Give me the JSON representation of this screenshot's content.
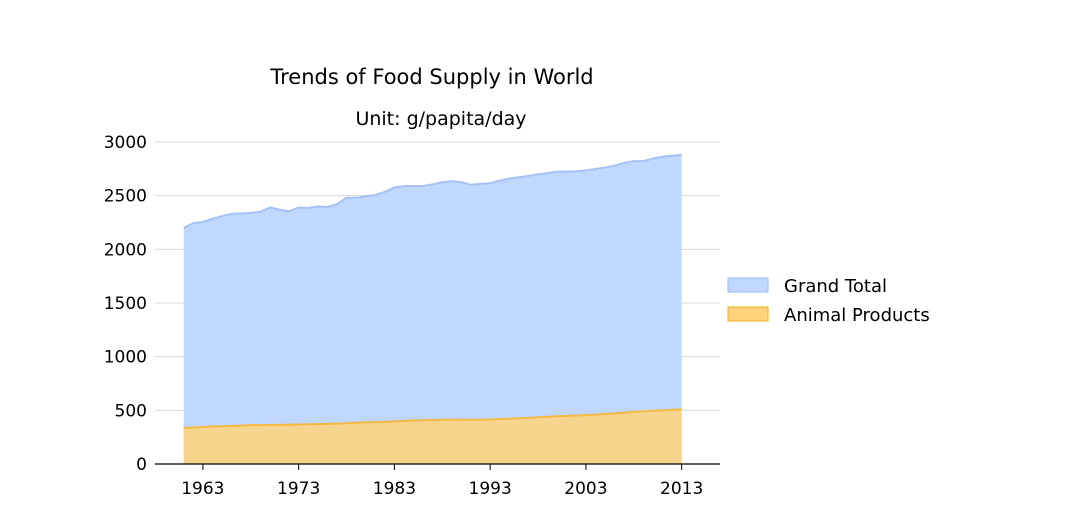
{
  "chart_data": {
    "type": "area",
    "title": "Trends of Food Supply in World",
    "subtitle": "Unit: g/papita/day",
    "xlabel": "",
    "ylabel": "",
    "xlim": [
      1958,
      2017
    ],
    "ylim": [
      0,
      3000
    ],
    "x_ticks": [
      1963,
      1973,
      1983,
      1993,
      2003,
      2013
    ],
    "y_ticks": [
      0,
      500,
      1000,
      1500,
      2000,
      2500,
      3000
    ],
    "grid": "horizontal",
    "legend_position": "right",
    "x": [
      1961,
      1962,
      1963,
      1964,
      1965,
      1966,
      1967,
      1968,
      1969,
      1970,
      1971,
      1972,
      1973,
      1974,
      1975,
      1976,
      1977,
      1978,
      1979,
      1980,
      1981,
      1982,
      1983,
      1984,
      1985,
      1986,
      1987,
      1988,
      1989,
      1990,
      1991,
      1992,
      1993,
      1994,
      1995,
      1996,
      1997,
      1998,
      1999,
      2000,
      2001,
      2002,
      2003,
      2004,
      2005,
      2006,
      2007,
      2008,
      2009,
      2010,
      2011,
      2012,
      2013
    ],
    "series": [
      {
        "name": "Grand Total",
        "color": "#a4c2f4",
        "fill": "#c0d8ff",
        "values": [
          2200,
          2245,
          2255,
          2285,
          2310,
          2330,
          2335,
          2340,
          2350,
          2390,
          2370,
          2355,
          2390,
          2385,
          2400,
          2395,
          2420,
          2480,
          2480,
          2495,
          2505,
          2535,
          2578,
          2588,
          2590,
          2590,
          2605,
          2625,
          2635,
          2625,
          2602,
          2610,
          2616,
          2640,
          2660,
          2672,
          2685,
          2698,
          2710,
          2724,
          2724,
          2728,
          2735,
          2748,
          2762,
          2780,
          2806,
          2822,
          2822,
          2845,
          2864,
          2872,
          2880
        ]
      },
      {
        "name": "Animal Products",
        "color": "#f4b942",
        "fill": "#ffd37a",
        "values": [
          335,
          340,
          345,
          350,
          352,
          355,
          358,
          362,
          362,
          365,
          365,
          367,
          368,
          370,
          372,
          374,
          376,
          380,
          385,
          388,
          390,
          392,
          397,
          402,
          406,
          408,
          410,
          412,
          413,
          413,
          412,
          413,
          414,
          418,
          422,
          426,
          430,
          435,
          440,
          445,
          448,
          452,
          456,
          460,
          466,
          472,
          478,
          486,
          490,
          496,
          500,
          506,
          510
        ]
      }
    ]
  }
}
